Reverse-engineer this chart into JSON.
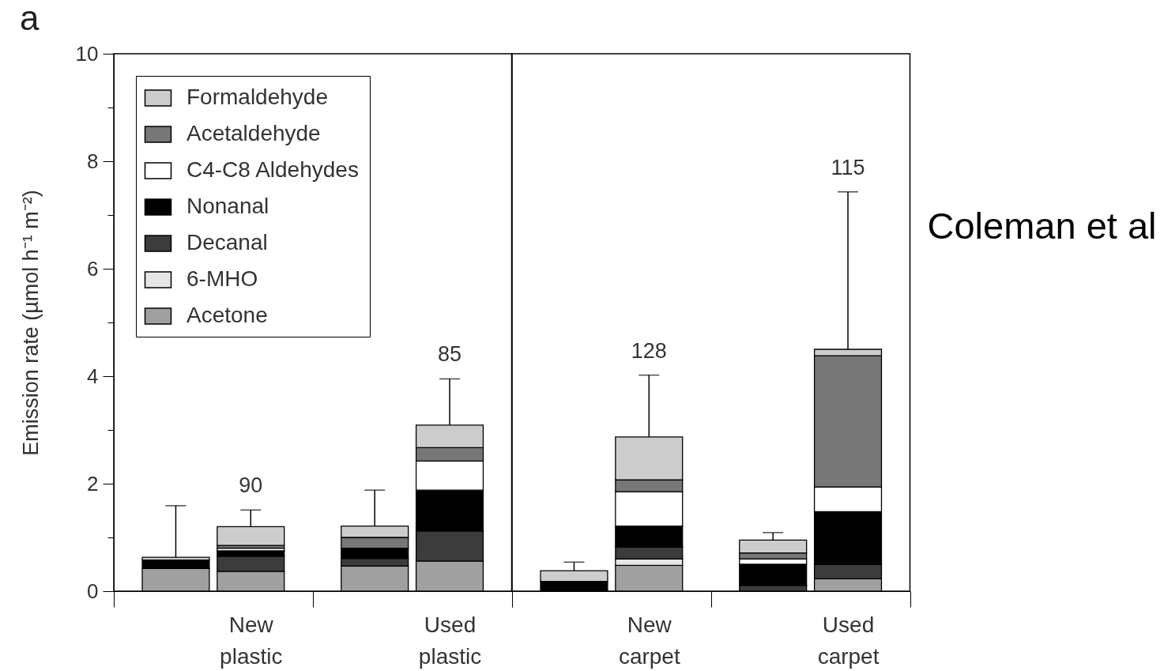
{
  "chart_data": [
    {
      "type": "bar",
      "title": "a",
      "ylabel": "Emission rate (µmol h⁻¹ m⁻²)",
      "categories": [
        null,
        "New plastic",
        null,
        "Used plastic"
      ],
      "stacked": true,
      "legend": "top left",
      "ylim": [
        0,
        10
      ],
      "yticks": [
        0,
        {
          "value": 1,
          "label": null
        },
        2,
        {
          "value": 3,
          "label": null
        },
        4,
        {
          "value": 5,
          "label": null
        },
        6,
        {
          "value": 7,
          "label": null
        },
        8,
        {
          "value": 9,
          "label": null
        },
        10
      ],
      "annotations": [
        {
          "text": "90",
          "x": "New plastic",
          "y": 1.2
        },
        {
          "text": "85",
          "x": "Used plastic",
          "y": 3.09
        }
      ],
      "series": [
        {
          "name": "Acetone",
          "color": "#a0a0a0",
          "values": [
            0.42,
            0.37,
            0.47,
            0.56
          ]
        },
        {
          "name": "6-MHO",
          "color": "#e6e6e6",
          "values": [
            null,
            null,
            null,
            null
          ]
        },
        {
          "name": "Decanal",
          "color": "#3c3c3c",
          "values": [
            null,
            0.28,
            0.14,
            0.56
          ]
        },
        {
          "name": "Nonanal",
          "color": "#000000",
          "values": [
            0.16,
            0.1,
            0.19,
            0.76
          ]
        },
        {
          "name": "C4-C8 Aldehydes",
          "color": "#ffffff",
          "values": [
            null,
            0.05,
            null,
            0.54
          ]
        },
        {
          "name": "Acetaldehyde",
          "color": "#777777",
          "values": [
            null,
            0.05,
            0.2,
            0.25
          ]
        },
        {
          "name": "Formaldehyde",
          "color": "#cccccc",
          "values": [
            0.05,
            0.35,
            0.21,
            0.42
          ],
          "errors": [
            [
              0.63,
              1.59
            ],
            [
              1.2,
              1.51
            ],
            [
              1.21,
              1.88
            ],
            [
              3.09,
              3.95
            ]
          ]
        }
      ]
    },
    {
      "type": "bar",
      "categories": [
        null,
        "New carpet",
        null,
        "Used carpet"
      ],
      "stacked": true,
      "ylim": [
        0,
        10
      ],
      "tick_labels": "x",
      "annotations": [
        {
          "text": "128",
          "x": "New carpet",
          "y": 4.02
        },
        {
          "text": "115",
          "x": "Used carpet",
          "y": 7.43
        },
        "Coleman et al"
      ],
      "series": [
        {
          "color": "#a0a0a0",
          "values": [
            null,
            0.48,
            null,
            0.23
          ]
        },
        {
          "color": "#e6e6e6",
          "values": [
            null,
            0.12,
            null,
            null
          ]
        },
        {
          "color": "#3c3c3c",
          "values": [
            null,
            0.22,
            0.11,
            0.27
          ]
        },
        {
          "color": "#000000",
          "values": [
            0.18,
            0.39,
            0.39,
            0.98
          ]
        },
        {
          "color": "#ffffff",
          "values": [
            null,
            0.64,
            0.1,
            0.46
          ]
        },
        {
          "color": "#777777",
          "values": [
            null,
            0.22,
            0.11,
            2.44
          ]
        },
        {
          "color": "#cccccc",
          "values": [
            0.2,
            0.8,
            0.24,
            0.12
          ],
          "errors": [
            [
              0.38,
              0.54
            ],
            [
              2.87,
              4.02
            ],
            [
              0.95,
              1.09
            ],
            [
              4.5,
              7.43
            ]
          ]
        }
      ]
    }
  ]
}
